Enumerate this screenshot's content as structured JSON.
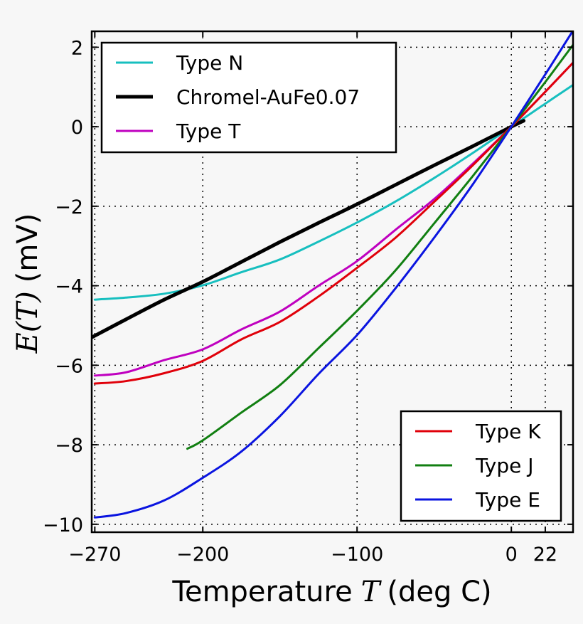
{
  "chart_data": {
    "type": "line",
    "title": "",
    "xlabel": "Temperature",
    "xlabel_symbol": "T",
    "xlabel_unit": "(deg C)",
    "ylabel_symbol": "E",
    "ylabel_arg": "(T)",
    "ylabel_unit": "(mV)",
    "xlim": [
      -272,
      40
    ],
    "ylim": [
      -10.2,
      2.4
    ],
    "xticks": [
      {
        "value": -270,
        "label": "−270"
      },
      {
        "value": -200,
        "label": "−200"
      },
      {
        "value": -100,
        "label": "−100"
      },
      {
        "value": 0,
        "label": "0"
      },
      {
        "value": 22,
        "label": "22"
      }
    ],
    "yticks": [
      {
        "value": 2,
        "label": "2"
      },
      {
        "value": 0,
        "label": "0"
      },
      {
        "value": -2,
        "label": "−2"
      },
      {
        "value": -4,
        "label": "−4"
      },
      {
        "value": -6,
        "label": "−6"
      },
      {
        "value": -8,
        "label": "−8"
      },
      {
        "value": -10,
        "label": "−10"
      }
    ],
    "grid": true,
    "legends": [
      {
        "placement": "upper-left",
        "entries": [
          "Type N",
          "Chromel-AuFe0.07",
          "Type T"
        ]
      },
      {
        "placement": "lower-right",
        "entries": [
          "Type K",
          "Type J",
          "Type E"
        ]
      }
    ],
    "series": [
      {
        "name": "Type N",
        "color": "#17bfbf",
        "width": 3,
        "x": [
          -270,
          -250,
          -225,
          -200,
          -175,
          -150,
          -125,
          -100,
          -75,
          -50,
          -25,
          0,
          25,
          40
        ],
        "y": [
          -4.35,
          -4.3,
          -4.2,
          -3.99,
          -3.66,
          -3.34,
          -2.89,
          -2.41,
          -1.88,
          -1.29,
          -0.66,
          0,
          0.66,
          1.05
        ]
      },
      {
        "name": "Chromel-AuFe0.07",
        "color": "#000000",
        "width": 5,
        "x": [
          -272,
          -250,
          -225,
          -200,
          -175,
          -150,
          -125,
          -100,
          -75,
          -50,
          -25,
          0,
          8
        ],
        "y": [
          -5.3,
          -4.85,
          -4.35,
          -3.9,
          -3.4,
          -2.9,
          -2.42,
          -1.95,
          -1.46,
          -0.97,
          -0.49,
          0,
          0.15
        ]
      },
      {
        "name": "Type T",
        "color": "#bf00bf",
        "width": 3,
        "x": [
          -270,
          -250,
          -225,
          -200,
          -175,
          -150,
          -125,
          -100,
          -75,
          -50,
          -25,
          0,
          25,
          40
        ],
        "y": [
          -6.26,
          -6.18,
          -5.87,
          -5.6,
          -5.1,
          -4.65,
          -4.0,
          -3.38,
          -2.59,
          -1.82,
          -0.93,
          0,
          1.0,
          1.61
        ]
      },
      {
        "name": "Type K",
        "color": "#e0000a",
        "width": 3,
        "x": [
          -270,
          -250,
          -225,
          -200,
          -175,
          -150,
          -125,
          -100,
          -75,
          -50,
          -25,
          0,
          25,
          40
        ],
        "y": [
          -6.46,
          -6.4,
          -6.2,
          -5.89,
          -5.35,
          -4.91,
          -4.27,
          -3.55,
          -2.79,
          -1.89,
          -0.97,
          0,
          1.0,
          1.61
        ]
      },
      {
        "name": "Type J",
        "color": "#117f11",
        "width": 3,
        "x": [
          -210,
          -200,
          -175,
          -150,
          -125,
          -100,
          -75,
          -50,
          -25,
          0,
          25,
          40
        ],
        "y": [
          -8.1,
          -7.89,
          -7.19,
          -6.5,
          -5.57,
          -4.63,
          -3.61,
          -2.43,
          -1.24,
          0,
          1.28,
          2.06
        ]
      },
      {
        "name": "Type E",
        "color": "#0a14e0",
        "width": 3,
        "x": [
          -270,
          -250,
          -225,
          -200,
          -175,
          -150,
          -125,
          -100,
          -75,
          -50,
          -25,
          0,
          25,
          40
        ],
        "y": [
          -9.83,
          -9.72,
          -9.4,
          -8.83,
          -8.17,
          -7.28,
          -6.22,
          -5.24,
          -4.06,
          -2.79,
          -1.45,
          0,
          1.5,
          2.42
        ]
      }
    ]
  }
}
